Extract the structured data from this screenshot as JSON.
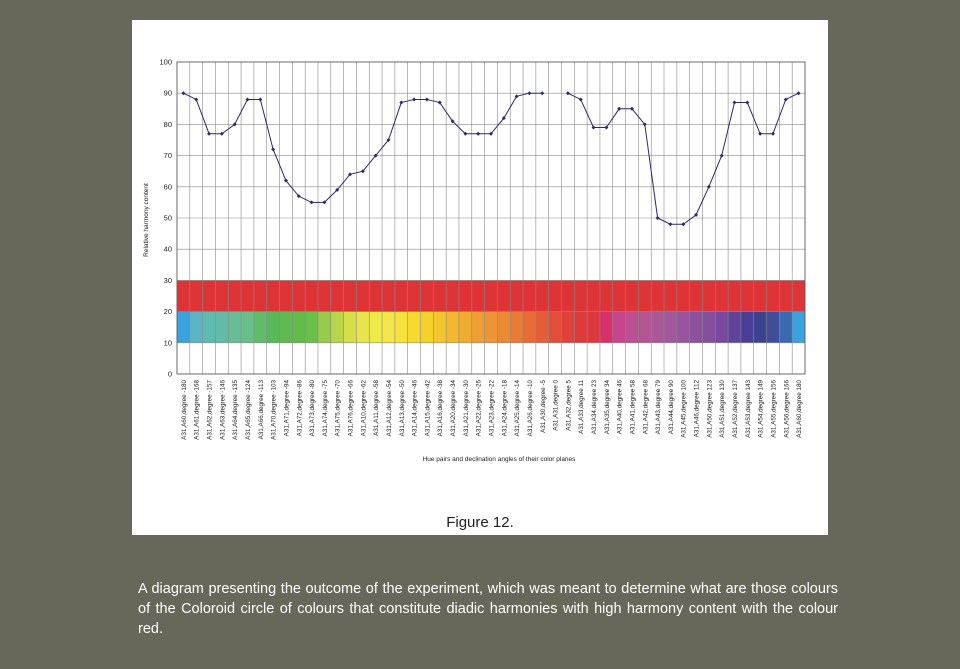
{
  "figure_caption": "Figure 12.",
  "description": "A diagram presenting the outcome of the experiment, which was meant to determine what are those colours of the Coloroid circle of colours that constitute diadic harmonies with high harmony content with the colour red.",
  "chart_data": {
    "type": "line",
    "title": "",
    "xlabel": "Hue pairs and declination angles of their color planes",
    "ylabel": "Relative harmony content",
    "ylim": [
      0,
      100
    ],
    "yticks": [
      0,
      10,
      20,
      30,
      40,
      50,
      60,
      70,
      80,
      90,
      100
    ],
    "grid": true,
    "line_color": "#2b2a6e",
    "categories": [
      "A31,A60,degree -180",
      "A31,A61,degree -168",
      "A31,A62,degree -157",
      "A31,A63,degree -146",
      "A31,A64,degree -135",
      "A31,A65,degree -124",
      "A31,A66,degree -113",
      "A31,A70,degree -103",
      "A31,A71,degree -94",
      "A31,A72,degree -86",
      "A31,A73,degree -80",
      "A31,A74,degree -75",
      "A31,A75,degree -70",
      "A31,A76,degree -66",
      "A31,A10,degree -62",
      "A31,A11,degree -58",
      "A31,A12,degree -54",
      "A31,A13,degree -50",
      "A31,A14,degree -46",
      "A31,A15,degree -42",
      "A31,A16,degree -38",
      "A31,A20,degree -34",
      "A31,A21,degree -30",
      "A31,A22,degree -26",
      "A31,A23,degree -22",
      "A31,A24,degree -18",
      "A31,A25,degree -14",
      "A31,A26,degree -10",
      "A31,A30,degree -5",
      "A31,A31,degree 0",
      "A31,A32,degree 5",
      "A31,A33,degree 11",
      "A31,A34,degree 23",
      "A31,A35,degree 34",
      "A31,A40,degree 46",
      "A31,A41,degree 58",
      "A31,A42,degree 68",
      "A31,A43,degree 79",
      "A31,A44,degree 90",
      "A31,A45,degree 100",
      "A31,A46,degree 112",
      "A31,A50,degree 123",
      "A31,A51,degree 130",
      "A31,A52,degree 137",
      "A31,A53,degree 143",
      "A31,A54,degree 149",
      "A31,A55,degree 156",
      "A31,A56,degree 166",
      "A31,A60,degree 180"
    ],
    "values": [
      90,
      88,
      77,
      77,
      80,
      88,
      88,
      72,
      62,
      57,
      55,
      55,
      59,
      64,
      65,
      70,
      75,
      87,
      88,
      88,
      87,
      81,
      77,
      77,
      77,
      82,
      89,
      90,
      90,
      null,
      90,
      88,
      79,
      79,
      85,
      85,
      80,
      50,
      48,
      48,
      51,
      60,
      70,
      87,
      87,
      77,
      77,
      88,
      90
    ],
    "reference_band": {
      "from": 20,
      "to": 30,
      "color": "#df3437"
    },
    "partner_band": {
      "from": 10,
      "to": 20
    },
    "partner_colors": [
      "#3aa2dc",
      "#5ab6c4",
      "#5fbbb1",
      "#62bca5",
      "#66bd98",
      "#69be8a",
      "#5fbc6a",
      "#58b95a",
      "#5fbb50",
      "#62bc4a",
      "#68c04a",
      "#98cb4c",
      "#b8d54c",
      "#d5df48",
      "#e8e54a",
      "#eeea48",
      "#f5e748",
      "#f7e23d",
      "#f7da2e",
      "#f5d12c",
      "#f3c52e",
      "#f2b92f",
      "#f0ab31",
      "#ee9f33",
      "#ed9435",
      "#eb8a34",
      "#e97c35",
      "#e76c36",
      "#e55d37",
      "#e24f39",
      "#e0413a",
      "#de3a3b",
      "#dc393c",
      "#d8306a",
      "#c5448c",
      "#be4f91",
      "#b35593",
      "#aa5898",
      "#a2579d",
      "#98559e",
      "#8e519e",
      "#84509e",
      "#78499e",
      "#60449a",
      "#493f96",
      "#3c4190",
      "#3e4e99",
      "#3c6ab0",
      "#3aa2dc"
    ]
  }
}
